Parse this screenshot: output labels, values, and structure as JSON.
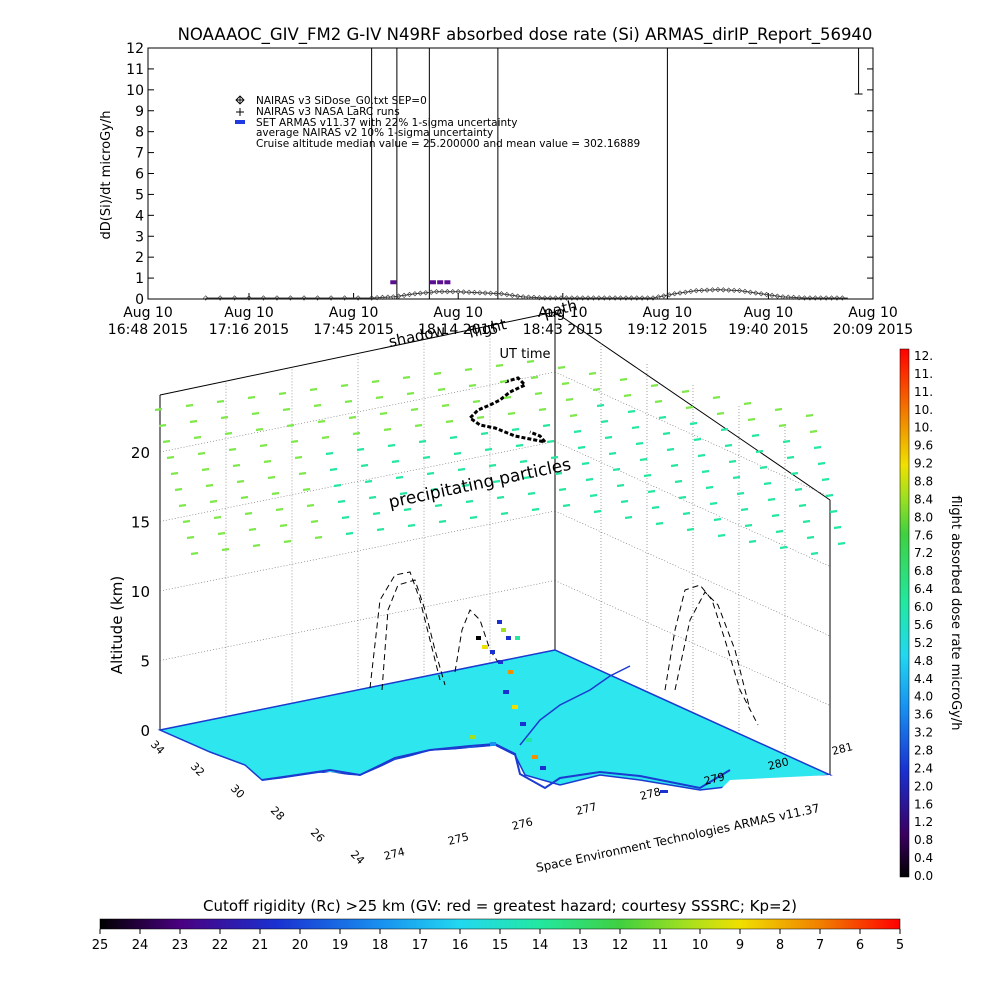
{
  "title": "NOAAAOC_GIV_FM2 G-IV   N49RF  absorbed dose rate (Si) ARMAS_dirIP_Report_56940",
  "top_plot": {
    "ylabel": "dD(Si)/dt microGy/h",
    "xlabel": "UT time",
    "legend": [
      {
        "symbol": "diamond",
        "text": "NAIRAS v3 SiDose_G0.txt SEP=0"
      },
      {
        "symbol": "plus",
        "text": "NAIRAS v3 NASA LaRC runs"
      },
      {
        "symbol": "blue-bar",
        "text": "SET ARMAS v11.37 with 22% 1-sigma uncertainty"
      },
      {
        "symbol": "none",
        "text": "average NAIRAS v2 10% 1-sigma uncertainty"
      },
      {
        "symbol": "none",
        "text": "Cruise altitude median value = 25.200000 and mean value = 302.16889"
      }
    ],
    "overlay_labels": [
      "shadow",
      "flight",
      "path"
    ]
  },
  "chart_data": [
    {
      "type": "line",
      "title": "NOAAAOC_GIV_FM2 G-IV   N49RF  absorbed dose rate (Si) ARMAS_dirIP_Report_56940",
      "xlabel": "UT time",
      "ylabel": "dD(Si)/dt microGy/h",
      "ylim": [
        0,
        12
      ],
      "yticks": [
        "0",
        "1",
        "2",
        "3",
        "4",
        "5",
        "6",
        "7",
        "8",
        "9",
        "10",
        "11",
        "12"
      ],
      "xticks": [
        {
          "l1": "Aug 10",
          "l2": "16:48 2015"
        },
        {
          "l1": "Aug 10",
          "l2": "17:16 2015"
        },
        {
          "l1": "Aug 10",
          "l2": "17:45 2015"
        },
        {
          "l1": "Aug 10",
          "l2": "18:14 2015"
        },
        {
          "l1": "Aug 10",
          "l2": "18:43 2015"
        },
        {
          "l1": "Aug 10",
          "l2": "19:12 2015"
        },
        {
          "l1": "Aug 10",
          "l2": "19:40 2015"
        },
        {
          "l1": "Aug 10",
          "l2": "20:09 2015"
        }
      ],
      "x_time_min": [
        "16:48",
        "17:16",
        "17:45",
        "18:14",
        "18:43",
        "19:12",
        "19:40",
        "20:09"
      ],
      "series": [
        {
          "name": "NAIRAS v3 SiDose_G0.txt SEP=0",
          "x": [
            "17:04",
            "17:20",
            "17:35",
            "17:50",
            "17:56",
            "18:02",
            "18:08",
            "18:14",
            "18:20",
            "18:26",
            "18:32",
            "18:38",
            "18:44",
            "18:50",
            "18:56",
            "19:02",
            "19:08",
            "19:14",
            "19:20",
            "19:26",
            "19:32",
            "19:38",
            "19:44",
            "19:50",
            "19:56",
            "20:02"
          ],
          "y": [
            0.05,
            0.05,
            0.05,
            0.05,
            0.1,
            0.25,
            0.35,
            0.35,
            0.3,
            0.25,
            0.1,
            0.05,
            0.05,
            0.05,
            0.05,
            0.05,
            0.05,
            0.25,
            0.4,
            0.45,
            0.4,
            0.25,
            0.1,
            0.05,
            0.05,
            0.05
          ]
        },
        {
          "name": "SET ARMAS v11.37 with 22% 1-sigma uncertainty",
          "x": [
            "17:56",
            "18:07",
            "18:09",
            "18:11"
          ],
          "y": [
            0.8,
            0.8,
            0.8,
            0.8
          ]
        }
      ],
      "vertical_lines_time": [
        "17:50",
        "17:57",
        "18:06",
        "18:25",
        "19:12"
      ],
      "error_bar": {
        "x": "20:05",
        "ylo": 9.8,
        "yhi": 12
      }
    },
    {
      "type": "scatter",
      "xlabel": "",
      "ylabel": "Altitude (km)",
      "zticks": [
        "0",
        "5",
        "10",
        "15",
        "20"
      ],
      "lat_ticks": [
        "24",
        "26",
        "28",
        "30",
        "32",
        "34"
      ],
      "lon_ticks": [
        "274",
        "275",
        "276",
        "277",
        "278",
        "279",
        "280",
        "281"
      ],
      "annotations": [
        "precipitating particles"
      ],
      "credit": "Space Environment Technologies ARMAS v11.37"
    }
  ],
  "dose_colorbar": {
    "label": "flight absorbed dose rate microGy/h",
    "ticks": [
      "12.",
      "11.",
      "11.",
      "10.",
      "10.",
      "9.6",
      "9.2",
      "8.8",
      "8.4",
      "8.0",
      "7.6",
      "7.2",
      "6.8",
      "6.4",
      "6.0",
      "5.6",
      "5.2",
      "4.8",
      "4.4",
      "4.0",
      "3.6",
      "3.2",
      "2.8",
      "2.4",
      "2.0",
      "1.6",
      "1.2",
      "0.8",
      "0.4",
      "0.0"
    ]
  },
  "rc_colorbar": {
    "title": "Cutoff rigidity (Rc) >25 km (GV: red = greatest hazard; courtesy SSSRC; Kp=2)",
    "ticks": [
      "25",
      "24",
      "23",
      "22",
      "21",
      "20",
      "19",
      "18",
      "17",
      "16",
      "15",
      "14",
      "13",
      "12",
      "11",
      "10",
      "9",
      "8",
      "7",
      "6",
      "5"
    ]
  },
  "colors": {
    "map_fill": "#2ee6ee",
    "coast": "#1a3ad0",
    "particles_green": "#7fe84a",
    "particles_teal": "#22e8a0",
    "armas_bar": "#1f3ae0",
    "armas_peak": "#5a1090",
    "axis": "#000000",
    "grid": "#555555"
  }
}
